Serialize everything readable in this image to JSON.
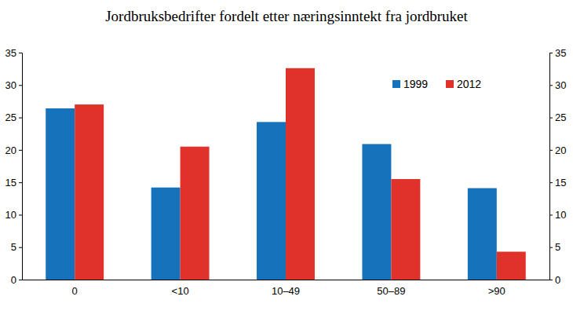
{
  "chart_data": {
    "type": "bar",
    "title": "Jordbruksbedrifter fordelt etter næringsinntekt fra jordbruket",
    "categories": [
      "0",
      "<10",
      "10–49",
      "50–89",
      ">90"
    ],
    "series": [
      {
        "name": "1999",
        "color": "#1672bb",
        "values": [
          26.4,
          14.2,
          24.3,
          20.9,
          14.1
        ]
      },
      {
        "name": "2012",
        "color": "#e0312a",
        "values": [
          27.0,
          20.5,
          32.6,
          15.5,
          4.3
        ]
      }
    ],
    "ylim": [
      0,
      35
    ],
    "yticks": [
      0,
      5,
      10,
      15,
      20,
      25,
      30,
      35
    ],
    "y2lim": [
      0,
      35
    ],
    "y2ticks": [
      0,
      5,
      10,
      15,
      20,
      25,
      30,
      35
    ],
    "legend": "upper right"
  }
}
